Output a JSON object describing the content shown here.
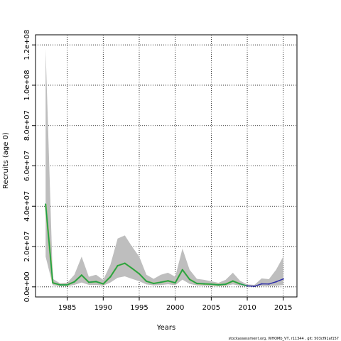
{
  "chart_data": {
    "type": "line",
    "xlabel": "Years",
    "ylabel": "Recruits (age 0)",
    "xlim": [
      1980.6,
      2016.9
    ],
    "ylim": [
      -5000000,
      125000000
    ],
    "x_ticks": [
      1985,
      1990,
      1995,
      2000,
      2005,
      2010,
      2015
    ],
    "x_tick_labels": [
      "1985",
      "1990",
      "1995",
      "2000",
      "2005",
      "2010",
      "2015"
    ],
    "y_ticks": [
      0,
      20000000,
      40000000,
      60000000,
      80000000,
      100000000,
      120000000
    ],
    "y_tick_labels": [
      "0.0e+00",
      "2.0e+07",
      "4.0e+07",
      "6.0e+07",
      "8.0e+07",
      "1.0e+08",
      "1.2e+08"
    ],
    "grid": true,
    "years": [
      1982,
      1983,
      1984,
      1985,
      1986,
      1987,
      1988,
      1989,
      1990,
      1991,
      1992,
      1993,
      1994,
      1995,
      1996,
      1997,
      1998,
      1999,
      2000,
      2001,
      2002,
      2003,
      2004,
      2005,
      2006,
      2007,
      2008,
      2009,
      2010,
      2011,
      2012,
      2013,
      2014,
      2015
    ],
    "estimate": [
      41000000,
      2000000,
      1000000,
      1000000,
      2500000,
      5800000,
      2300000,
      2600000,
      1500000,
      5000000,
      10500000,
      11700000,
      9200000,
      6500000,
      2800000,
      1700000,
      2300000,
      3000000,
      2000000,
      8500000,
      3700000,
      1700000,
      1500000,
      1300000,
      1000000,
      1300000,
      2900000,
      1500000,
      500000,
      300000,
      1500000,
      1400000,
      2500000,
      3900000
    ],
    "upper": [
      118000000,
      4000000,
      1800000,
      2000000,
      6000000,
      15000000,
      5000000,
      6000000,
      3500000,
      11000000,
      24000000,
      25500000,
      20000000,
      15000000,
      6000000,
      4000000,
      6000000,
      7000000,
      5000000,
      19000000,
      8500000,
      4000000,
      3500000,
      2800000,
      2000000,
      3500000,
      7000000,
      3000000,
      1200000,
      1000000,
      4200000,
      3800000,
      8500000,
      15000000
    ],
    "lower": [
      15000000,
      800000,
      400000,
      400000,
      1000000,
      2200000,
      1000000,
      1000000,
      600000,
      2200000,
      4500000,
      5200000,
      4000000,
      2800000,
      1200000,
      700000,
      900000,
      1300000,
      800000,
      3600000,
      1500000,
      700000,
      600000,
      500000,
      400000,
      500000,
      1200000,
      600000,
      200000,
      100000,
      400000,
      400000,
      600000,
      900000
    ],
    "series": [
      {
        "color": "#8bbf3a",
        "from": 1982,
        "to": 2009
      },
      {
        "color": "#2aa198",
        "from": 1982,
        "to": 2010
      },
      {
        "color": "#1f9e4a",
        "from": 1982,
        "to": 2010
      },
      {
        "color": "#2b2ba8",
        "from": 2010,
        "to": 2015
      }
    ],
    "band_color": "#bebebe",
    "footnote": "stockassessment.org, WHOMb_VT, r11344 , git: 503cf91af157"
  }
}
